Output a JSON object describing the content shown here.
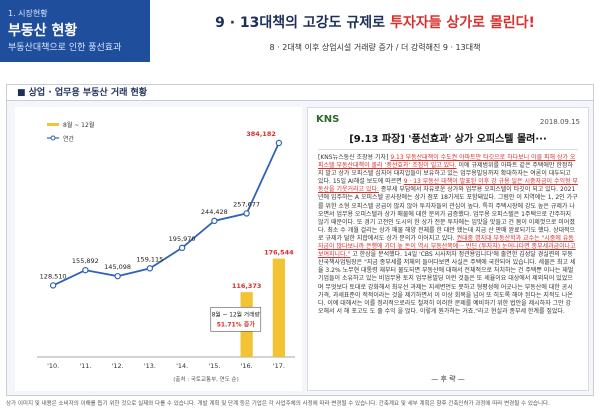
{
  "header": {
    "section_label": "1. 시장현황",
    "title": "부동산 현황",
    "subtitle": "부동산대책으로 인한 풍선효과",
    "main_title_prefix": "9 · 13대책의 고강도 규제로 ",
    "main_title_highlight": "투자자들 상가로 몰린다!",
    "main_subtitle": "8 · 2대책 이후 상업시설 거래량 증가 / 더 강력해진 9 · 13대책"
  },
  "panel": {
    "title": "■ 상업 · 업무용 부동산 거래 현황"
  },
  "chart_data": {
    "type": "bar+line",
    "categories": [
      "'10.",
      "'11.",
      "'12.",
      "'13.",
      "'14.",
      "'15.",
      "'16.",
      "'17."
    ],
    "series": [
      {
        "name": "8월 ~ 12월",
        "type": "bar",
        "color": "#f2c335",
        "values": [
          null,
          null,
          null,
          null,
          null,
          null,
          116373,
          176544
        ]
      },
      {
        "name": "연간",
        "type": "line",
        "color": "#2f63b6",
        "values": [
          128510,
          155892,
          145098,
          159115,
          195970,
          244428,
          257677,
          384182
        ]
      }
    ],
    "data_labels": [
      "128,510",
      "155,892",
      "145,098",
      "159,115",
      "195,970",
      "244,428",
      "257,677",
      "384,182"
    ],
    "bar_labels": [
      "116,373",
      "176,544"
    ],
    "ylim": [
      0,
      420000
    ],
    "callout": {
      "line1": "8월 ~ 12월 거래량",
      "line2": "51.71% 증가"
    },
    "source": "(출처 : 국토교통부, 연도 순)"
  },
  "article": {
    "logo": "KNS",
    "date": "2018.09.15",
    "title": "[9.13 파장] '풍선효과' 상가 오피스텔 몰려···",
    "body_lead": "[KNS뉴스통신 조창용 기자] ",
    "body_red1": "9.13 부동산대책이 수도권 아파트만 타깃으로 하다보니 이를 피해 상가 오피스텔 부동산대책이 몰리 ‘풍선효과’ 조짐이 일고 있다.",
    "body_text1": " 이에 규제범위를 아파트 같은 주택에만 한정하지 말고 상가 오피스텔 심지어 대지압들이 보유하고 있는 업무용빌딩까지 확대하자는 여론이 대두되고 있다. 15일 AI해설 보도에 따르면 ",
    "body_red2": "9 · 13 부동산 대책이 발표된 이후 강 규용 일은 시중자금이 수익형 부동산을 기웃거리고 있다.",
    "body_text2": " 종부세 부담에서 자유로운 상가와 업무용 오피스텔이 타깃이 되고 있다. 2021년에 입주하는 A 오피스텔 공사장에는 상가 점포 18가게도 포함돼있다. 그럼안 이 지역에는 1, 2인 가구를 위한 소형 오피스텔 공급이 많지 않아 투자자들의 관심이 높다. 특히 주택시장에 강도 높은 규제가 나오면서 업무용 오피스텔과 상가 매물에 대한 문의가 급증했다. 업무용 오피스텔은 1주택으로 간주하지 않기 때문이다. 또 경기 고전인 도시의 한 상가 전문 투자에는 입맛을 맛들고 건 몸이 이제껏으로 미어졌다. 최소 수 개월 걸리는 상가 매물 해양 전체를 한 대만 했는데 지금 산 판매 완료되기도 했다. 상대적으로 규제가 덜한 지합에서도 상가 문의가 이어지고 있다. ",
    "body_red3": "권대중 명지대 부동산학과 교수는 \"시중에 유동자금이 많다보니까 은행에 가더 높 돈이 역시 부동산쪽에··· 반딘 (투자자) 눈어나다면 종부세과금이나고 보여지니다.\"",
    "body_text3": " 고 한상을 분석했다. 14일 'CBS 시사저자 정관용입니다'에 출연한 김성달 경실련의 부동산국책사업팀장은 \"지금 종부세를 저체의 들어다보면 사실은 주택에 국한되어 있습니다. 세물은 최고 세율 3.2% 노무현 대통령 재부터 물도되면 부동산에 대해서 전체적으로 처치하는 건 주택뿐 이나는 재벌기업들이 소유하고 있는 비업무용 토지 업무용빌딩 이런 것들은 또 세율이요 대상에서 제외되어 있었으며 무엇보다 토대로 강화해서 최우선 과제는 지세변먼도 못하고 형평성에 어긋나는 부동산에 대한 공시가격, 과세표준이 적적이라는 것을 제기하면서 이 이상 회복을 넘어 또 히도록 해야 된다는 지적도 나온다. 이에 대해서는 이를 정리적으로라도 철저히 이러한 문제를 예비하기 위한 법안을 제시하자 그만 강 오해서 서 해 포고도 도 줄 수익 을 얹다. 이렇게 뭔가하는 거죠.\"라고 현실과 종부세 한계를 짚었다.",
    "end": "— 후 략 —"
  },
  "footer": {
    "text": "상가 이미지 및 내용은 소비자의 이해를 돕기 위한 것으로 실제와 다를 수 있습니다. 개발 계획 및 단계 등은 기업은 각 사업주체의 사정에 따라 변경될 수 있습니다. 간축계요 및 세부 계획은 향후 건축인허가 과정에 따라 변경될 수 있습니다."
  }
}
